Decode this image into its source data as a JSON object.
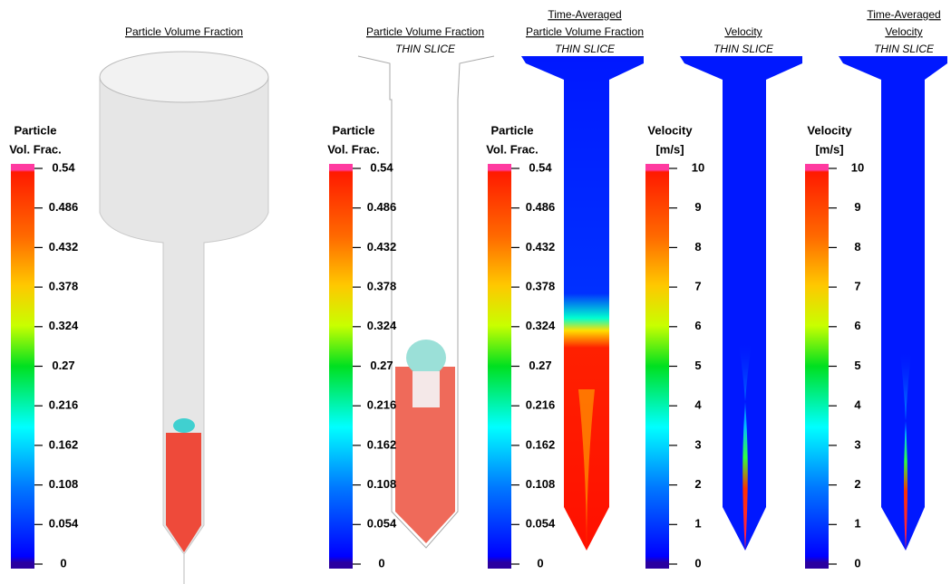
{
  "panels": [
    {
      "title": [
        "Particle Volume Fraction"
      ],
      "legend_title": [
        "Particle",
        "Vol. Frac."
      ],
      "ticks": [
        "0.54",
        "0.486",
        "0.432",
        "0.378",
        "0.324",
        "0.27",
        "0.216",
        "0.162",
        "0.108",
        "0.054",
        "0"
      ]
    },
    {
      "title": [
        "Particle Volume Fraction"
      ],
      "subtitle": "THIN SLICE",
      "legend_title": [
        "Particle",
        "Vol. Frac."
      ],
      "ticks": [
        "0.54",
        "0.486",
        "0.432",
        "0.378",
        "0.324",
        "0.27",
        "0.216",
        "0.162",
        "0.108",
        "0.054",
        "0"
      ]
    },
    {
      "title": [
        "Time-Averaged",
        "Particle Volume Fraction"
      ],
      "subtitle": "THIN SLICE",
      "legend_title": [
        "Particle",
        "Vol. Frac."
      ],
      "ticks": [
        "0.54",
        "0.486",
        "0.432",
        "0.378",
        "0.324",
        "0.27",
        "0.216",
        "0.162",
        "0.108",
        "0.054",
        "0"
      ]
    },
    {
      "title": [
        "Velocity"
      ],
      "subtitle": "THIN SLICE",
      "legend_title": [
        "Velocity",
        "[m/s]"
      ],
      "ticks": [
        "10",
        "9",
        "8",
        "7",
        "6",
        "5",
        "4",
        "3",
        "2",
        "1",
        "0"
      ]
    },
    {
      "title": [
        "Time-Averaged",
        "Velocity"
      ],
      "subtitle": "THIN SLICE",
      "legend_title": [
        "Velocity",
        "[m/s]"
      ],
      "ticks": [
        "10",
        "9",
        "8",
        "7",
        "6",
        "5",
        "4",
        "3",
        "2",
        "1",
        "0"
      ]
    }
  ]
}
